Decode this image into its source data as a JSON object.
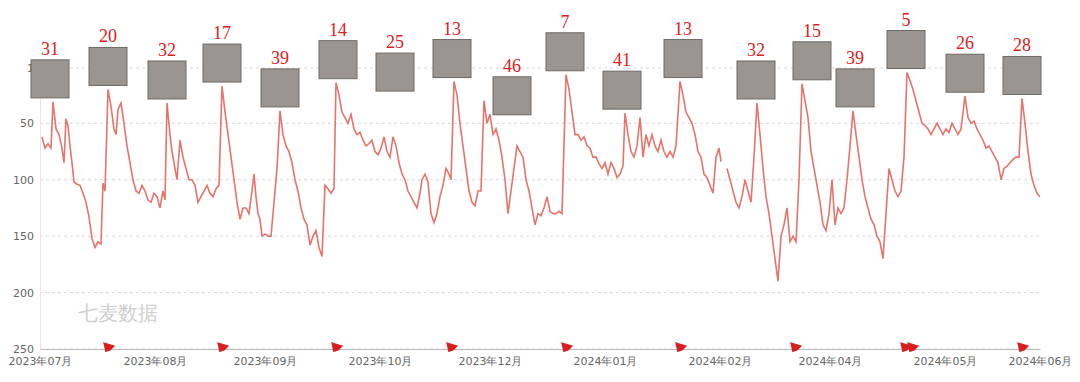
{
  "chart_data": {
    "type": "line",
    "watermark": "七麦数据",
    "x": [
      2,
      5,
      8,
      11,
      13,
      16,
      19,
      22,
      24,
      26,
      28,
      30,
      32,
      34,
      37,
      40,
      43,
      46,
      49,
      52,
      55,
      58,
      61,
      63,
      65,
      68,
      71,
      74,
      76,
      78,
      81,
      84,
      87,
      90,
      93,
      96,
      99,
      102,
      105,
      108,
      111,
      114,
      117,
      120,
      123,
      125,
      127,
      130,
      132,
      135,
      137,
      140,
      143,
      146,
      149,
      152,
      155,
      158,
      161,
      164,
      167,
      170,
      173,
      176,
      179,
      182,
      185,
      188,
      191,
      194,
      197,
      200,
      203,
      206,
      209,
      212,
      214,
      216,
      218,
      220,
      222,
      225,
      228,
      231,
      234,
      237,
      240,
      243,
      246,
      249,
      252,
      255,
      258,
      261,
      264,
      267,
      270,
      273,
      276,
      279,
      282,
      285,
      288,
      291,
      294,
      296,
      299,
      302,
      305,
      308,
      311,
      314,
      317,
      320,
      323,
      326,
      329,
      332,
      335,
      338,
      341,
      344,
      347,
      350,
      353,
      356,
      359,
      362,
      365,
      368,
      371,
      374,
      377,
      380,
      382,
      385,
      388,
      391,
      394,
      397,
      400,
      403,
      406,
      409,
      411,
      414,
      417,
      420,
      423,
      426,
      429,
      432,
      435,
      438,
      441,
      444,
      447,
      450,
      453,
      456,
      459,
      462,
      465,
      468,
      471,
      474,
      477,
      480,
      483,
      486,
      489,
      492,
      495,
      498,
      501,
      504,
      507,
      510,
      513,
      516,
      519,
      522,
      526,
      529,
      532,
      535,
      538,
      541,
      544,
      547,
      550,
      553,
      556,
      559,
      562,
      565,
      568,
      571,
      574,
      577,
      580,
      583,
      585,
      588,
      591,
      594,
      597,
      600,
      603,
      606,
      609,
      612,
      615,
      618,
      621,
      624,
      627,
      630,
      633,
      636,
      640,
      643,
      646,
      649,
      652,
      655,
      658,
      661,
      664,
      667,
      670,
      673,
      676,
      679,
      681,
      684,
      687,
      690,
      693,
      696,
      699,
      702,
      705,
      708,
      711,
      714,
      717,
      720,
      723,
      726,
      729,
      732,
      735,
      738,
      741,
      744,
      747,
      750,
      753,
      756,
      759,
      762,
      765,
      768,
      771,
      774,
      777,
      780,
      783,
      786,
      789,
      792,
      795,
      798,
      801,
      804,
      807,
      810,
      813,
      816,
      819,
      822,
      825,
      828,
      831,
      834,
      837,
      840,
      843,
      846,
      849,
      852,
      855,
      858,
      861,
      864,
      867,
      870,
      873,
      876,
      879,
      882,
      885,
      888,
      891,
      894,
      897,
      900,
      903,
      906,
      909,
      912,
      915,
      918,
      921,
      925,
      928,
      931,
      934,
      937,
      940,
      943,
      946,
      949,
      952,
      955,
      958,
      961,
      964,
      967,
      970,
      973,
      976,
      979,
      982,
      985,
      988,
      991,
      994,
      997,
      1000
    ],
    "series": [
      {
        "color": "#e8736c",
        "values": [
          62,
          72,
          68,
          72,
          31,
          55,
          60,
          72,
          85,
          46,
          52,
          70,
          85,
          102,
          104,
          105,
          112,
          120,
          133,
          152,
          160,
          155,
          157,
          103,
          110,
          20,
          35,
          55,
          60,
          38,
          32,
          50,
          70,
          85,
          100,
          110,
          112,
          105,
          110,
          118,
          120,
          112,
          115,
          125,
          110,
          118,
          32,
          60,
          75,
          90,
          100,
          65,
          80,
          90,
          100,
          100,
          105,
          120,
          115,
          110,
          105,
          112,
          115,
          108,
          105,
          17,
          40,
          60,
          80,
          100,
          120,
          135,
          125,
          125,
          130,
          110,
          95,
          115,
          130,
          135,
          150,
          148,
          150,
          150,
          120,
          90,
          39,
          60,
          70,
          75,
          85,
          100,
          110,
          125,
          135,
          140,
          158,
          150,
          145,
          160,
          168,
          105,
          108,
          112,
          108,
          14,
          25,
          40,
          45,
          50,
          42,
          55,
          60,
          58,
          65,
          70,
          68,
          65,
          75,
          78,
          72,
          62,
          75,
          80,
          62,
          70,
          85,
          95,
          100,
          110,
          115,
          120,
          125,
          112,
          100,
          95,
          102,
          130,
          138,
          130,
          115,
          105,
          90,
          95,
          100,
          13,
          25,
          50,
          70,
          90,
          110,
          120,
          123,
          110,
          110,
          30,
          50,
          42,
          60,
          55,
          65,
          80,
          100,
          130,
          110,
          90,
          70,
          75,
          80,
          100,
          110,
          125,
          140,
          130,
          132,
          125,
          115,
          128,
          130,
          130,
          128,
          130,
          7,
          20,
          40,
          60,
          60,
          65,
          62,
          70,
          72,
          80,
          80,
          86,
          90,
          85,
          95,
          85,
          90,
          98,
          95,
          88,
          41,
          60,
          75,
          80,
          70,
          45,
          80,
          60,
          70,
          60,
          70,
          75,
          65,
          75,
          80,
          75,
          80,
          70,
          13,
          25,
          40,
          45,
          50,
          60,
          75,
          80,
          95,
          98,
          105,
          112,
          80,
          72,
          84,
          null,
          90,
          100,
          110,
          120,
          125,
          115,
          100,
          110,
          120,
          80,
          32,
          60,
          90,
          115,
          130,
          150,
          170,
          190,
          150,
          140,
          125,
          155,
          150,
          155,
          100,
          15,
          30,
          45,
          75,
          90,
          105,
          120,
          140,
          145,
          130,
          100,
          140,
          125,
          130,
          125,
          100,
          70,
          39,
          60,
          80,
          100,
          115,
          125,
          135,
          140,
          150,
          155,
          170,
          130,
          90,
          100,
          110,
          115,
          110,
          80,
          5,
          12,
          20,
          30,
          40,
          50,
          52,
          55,
          60,
          55,
          50,
          55,
          60,
          55,
          58,
          50,
          55,
          60,
          55,
          26,
          45,
          50,
          48,
          55,
          60,
          65,
          72,
          70,
          75,
          80,
          85,
          100,
          90,
          88,
          85,
          82,
          80,
          80,
          28,
          50,
          75,
          95,
          105,
          112,
          115
        ]
      }
    ],
    "xlim": [
      0,
      1000
    ],
    "xticks": [
      {
        "value": 0,
        "label": "2023年07月"
      },
      {
        "value": 115,
        "label": "2023年08月"
      },
      {
        "value": 225,
        "label": "2023年09月"
      },
      {
        "value": 340,
        "label": "2023年10月"
      },
      {
        "value": 450,
        "label": "2023年12月"
      },
      {
        "value": 565,
        "label": "2024年01月"
      },
      {
        "value": 680,
        "label": "2024年02月"
      },
      {
        "value": 790,
        "label": "2024年04月"
      },
      {
        "value": 905,
        "label": "2024年05月"
      },
      {
        "value": 1000,
        "label": "2024年06月"
      }
    ],
    "ylim": [
      250,
      1
    ],
    "yticks": [
      1,
      50,
      100,
      150,
      200,
      250
    ],
    "grid": true,
    "annotations": [
      {
        "x": 10,
        "value": 31
      },
      {
        "x": 68,
        "value": 20
      },
      {
        "x": 127,
        "value": 32
      },
      {
        "x": 182,
        "value": 17
      },
      {
        "x": 240,
        "value": 39
      },
      {
        "x": 298,
        "value": 14
      },
      {
        "x": 355,
        "value": 25
      },
      {
        "x": 412,
        "value": 13
      },
      {
        "x": 472,
        "value": 46
      },
      {
        "x": 525,
        "value": 7
      },
      {
        "x": 582,
        "value": 41
      },
      {
        "x": 643,
        "value": 13
      },
      {
        "x": 716,
        "value": 32
      },
      {
        "x": 772,
        "value": 15
      },
      {
        "x": 815,
        "value": 39
      },
      {
        "x": 866,
        "value": 5
      },
      {
        "x": 925,
        "value": 26
      },
      {
        "x": 982,
        "value": 28
      }
    ],
    "flags": [
      68,
      182,
      296,
      411,
      526,
      640,
      755,
      865,
      872,
      982
    ]
  }
}
